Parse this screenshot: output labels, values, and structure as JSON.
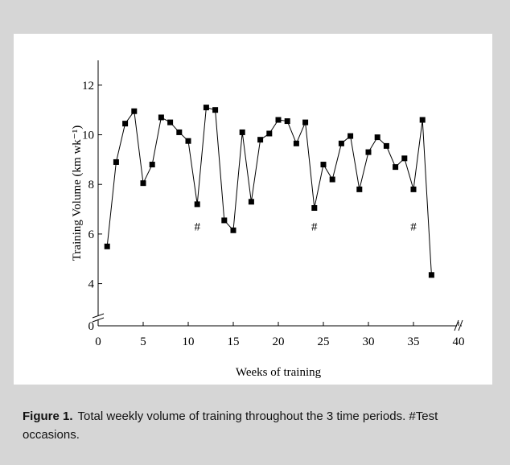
{
  "chart_data": {
    "type": "line",
    "x_label": "Weeks of training",
    "y_label": "Training Volume (km wk⁻¹)",
    "x": [
      1,
      2,
      3,
      4,
      5,
      6,
      7,
      8,
      9,
      10,
      11,
      12,
      13,
      14,
      15,
      16,
      17,
      18,
      19,
      20,
      21,
      22,
      23,
      24,
      25,
      26,
      27,
      28,
      29,
      30,
      31,
      32,
      33,
      34,
      35,
      36,
      37
    ],
    "values": [
      5.5,
      8.9,
      10.45,
      10.95,
      8.05,
      8.8,
      10.7,
      10.5,
      10.1,
      9.75,
      7.2,
      11.1,
      11.0,
      6.55,
      6.15,
      10.1,
      7.3,
      9.8,
      10.05,
      10.6,
      10.55,
      9.65,
      10.5,
      7.05,
      8.8,
      8.2,
      9.65,
      9.95,
      7.8,
      9.3,
      9.9,
      9.55,
      8.7,
      9.05,
      7.8,
      10.6,
      4.35
    ],
    "color": "#000000",
    "marker": "square",
    "xlim": [
      0,
      40
    ],
    "xticks": [
      0,
      5,
      10,
      15,
      20,
      25,
      30,
      35,
      40
    ],
    "ylim": [
      0,
      13
    ],
    "yticks": [
      0,
      4,
      6,
      8,
      10,
      12
    ],
    "ybreak": [
      0,
      2.3
    ],
    "annotations": [
      {
        "text": "#",
        "x": 11,
        "y": 6.3
      },
      {
        "text": "#",
        "x": 24,
        "y": 6.3
      },
      {
        "text": "#",
        "x": 35,
        "y": 6.3
      }
    ]
  },
  "caption": {
    "label": "Figure 1.",
    "text": "Total weekly volume of training throughout the 3 time periods. #Test occasions."
  }
}
